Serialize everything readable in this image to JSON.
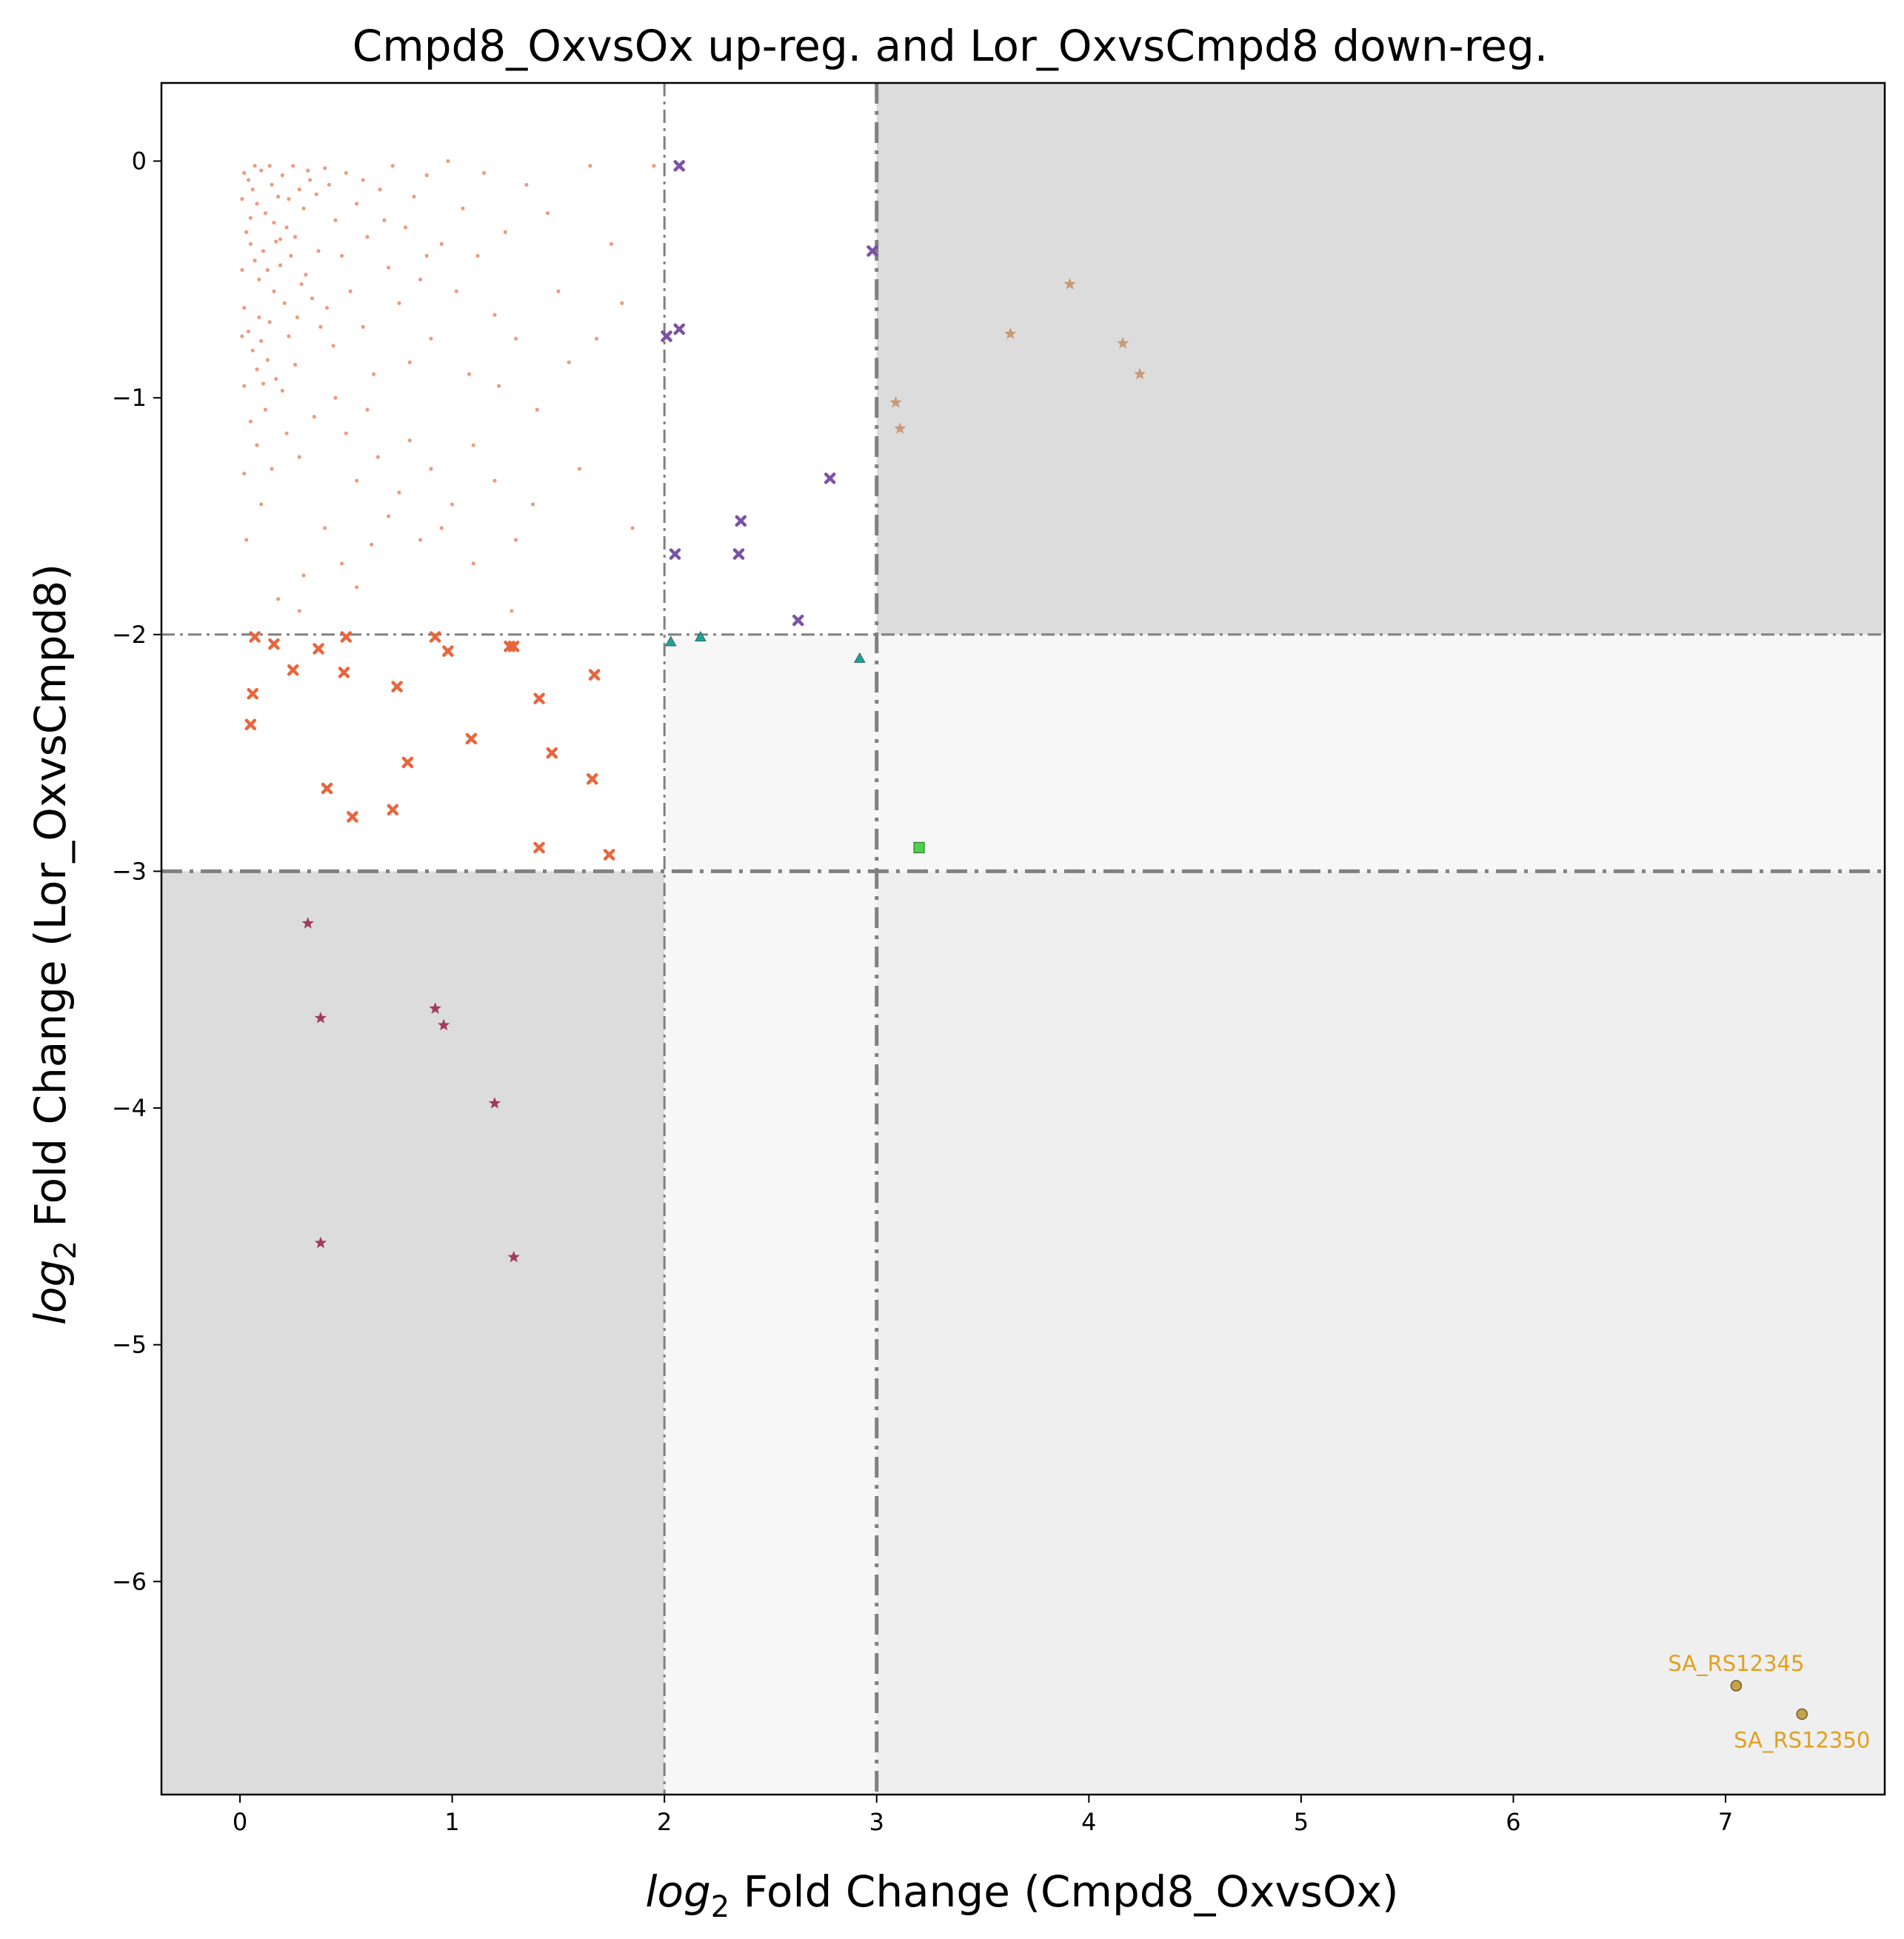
{
  "chart_data": {
    "type": "scatter",
    "title": "Cmpd8_OxvsOx up-reg. and Lor_OxvsCmpd8 down-reg.",
    "xlabel_prefix": "log",
    "xlabel_sub": "2",
    "xlabel_suffix": " Fold Change (Cmpd8_OxvsOx)",
    "ylabel_prefix": "log",
    "ylabel_sub": "2",
    "ylabel_suffix": " Fold Change (Lor_OxvsCmpd8)",
    "xlim": [
      -0.37,
      7.75
    ],
    "ylim": [
      -6.9,
      0.33
    ],
    "xticks": [
      0,
      1,
      2,
      3,
      4,
      5,
      6,
      7
    ],
    "yticks": [
      0,
      -1,
      -2,
      -3,
      -4,
      -5,
      -6
    ],
    "xtick_labels": [
      "0",
      "1",
      "2",
      "3",
      "4",
      "5",
      "6",
      "7"
    ],
    "ytick_labels": [
      "0",
      "−1",
      "−2",
      "−3",
      "−4",
      "−5",
      "−6"
    ],
    "grid": false,
    "regions": [
      {
        "x": [
          3,
          7.75
        ],
        "y": [
          -2,
          0.33
        ],
        "color": "#dcdcdc"
      },
      {
        "x": [
          -0.37,
          2
        ],
        "y": [
          -6.9,
          -3
        ],
        "color": "#dcdcdc"
      },
      {
        "x": [
          3,
          7.75
        ],
        "y": [
          -6.9,
          -3
        ],
        "color": "#efefef"
      },
      {
        "x": [
          2,
          3
        ],
        "y": [
          -6.9,
          -2
        ],
        "color": "#f7f7f7"
      },
      {
        "x": [
          3,
          7.75
        ],
        "y": [
          -3,
          -2
        ],
        "color": "#f7f7f7"
      }
    ],
    "threshold_lines": [
      {
        "axis": "x",
        "value": 2,
        "style": "thin"
      },
      {
        "axis": "x",
        "value": 3,
        "style": "thick"
      },
      {
        "axis": "y",
        "value": -2,
        "style": "thin"
      },
      {
        "axis": "y",
        "value": -3,
        "style": "thick"
      }
    ],
    "series": [
      {
        "marker": "dot",
        "color": "#e8825f",
        "points": [
          [
            0.02,
            -0.05
          ],
          [
            0.04,
            -0.08
          ],
          [
            0.06,
            -0.12
          ],
          [
            0.08,
            -0.18
          ],
          [
            0.1,
            -0.04
          ],
          [
            0.12,
            -0.22
          ],
          [
            0.15,
            -0.1
          ],
          [
            0.18,
            -0.15
          ],
          [
            0.2,
            -0.06
          ],
          [
            0.22,
            -0.28
          ],
          [
            0.25,
            -0.02
          ],
          [
            0.28,
            -0.12
          ],
          [
            0.3,
            -0.2
          ],
          [
            0.33,
            -0.08
          ],
          [
            0.36,
            -0.14
          ],
          [
            0.4,
            -0.03
          ],
          [
            0.03,
            -0.3
          ],
          [
            0.05,
            -0.35
          ],
          [
            0.07,
            -0.42
          ],
          [
            0.09,
            -0.5
          ],
          [
            0.11,
            -0.38
          ],
          [
            0.13,
            -0.46
          ],
          [
            0.16,
            -0.55
          ],
          [
            0.19,
            -0.33
          ],
          [
            0.21,
            -0.6
          ],
          [
            0.24,
            -0.4
          ],
          [
            0.27,
            -0.66
          ],
          [
            0.31,
            -0.48
          ],
          [
            0.34,
            -0.58
          ],
          [
            0.38,
            -0.7
          ],
          [
            0.02,
            -0.62
          ],
          [
            0.04,
            -0.72
          ],
          [
            0.06,
            -0.8
          ],
          [
            0.08,
            -0.88
          ],
          [
            0.1,
            -0.76
          ],
          [
            0.13,
            -0.84
          ],
          [
            0.17,
            -0.92
          ],
          [
            0.2,
            -0.97
          ],
          [
            0.23,
            -0.74
          ],
          [
            0.26,
            -0.86
          ],
          [
            0.02,
            -0.95
          ],
          [
            0.05,
            -1.1
          ],
          [
            0.08,
            -1.2
          ],
          [
            0.12,
            -1.05
          ],
          [
            0.15,
            -1.3
          ],
          [
            0.22,
            -1.15
          ],
          [
            0.28,
            -1.25
          ],
          [
            0.35,
            -1.08
          ],
          [
            0.03,
            -1.6
          ],
          [
            0.1,
            -1.45
          ],
          [
            0.42,
            -0.1
          ],
          [
            0.45,
            -0.25
          ],
          [
            0.48,
            -0.4
          ],
          [
            0.5,
            -0.05
          ],
          [
            0.52,
            -0.55
          ],
          [
            0.55,
            -0.18
          ],
          [
            0.58,
            -0.7
          ],
          [
            0.6,
            -0.32
          ],
          [
            0.63,
            -0.9
          ],
          [
            0.66,
            -0.12
          ],
          [
            0.7,
            -0.45
          ],
          [
            0.72,
            -0.02
          ],
          [
            0.75,
            -0.6
          ],
          [
            0.78,
            -0.28
          ],
          [
            0.8,
            -0.85
          ],
          [
            0.82,
            -0.15
          ],
          [
            0.85,
            -0.5
          ],
          [
            0.88,
            -0.06
          ],
          [
            0.9,
            -0.75
          ],
          [
            0.95,
            -0.35
          ],
          [
            0.98,
            -0.0
          ],
          [
            1.02,
            -0.55
          ],
          [
            1.05,
            -0.2
          ],
          [
            1.08,
            -0.9
          ],
          [
            1.12,
            -0.4
          ],
          [
            1.15,
            -0.05
          ],
          [
            1.2,
            -0.65
          ],
          [
            1.25,
            -0.3
          ],
          [
            1.3,
            -0.75
          ],
          [
            1.35,
            -0.1
          ],
          [
            0.45,
            -1.0
          ],
          [
            0.5,
            -1.15
          ],
          [
            0.55,
            -1.35
          ],
          [
            0.6,
            -1.05
          ],
          [
            0.65,
            -1.25
          ],
          [
            0.7,
            -1.5
          ],
          [
            0.75,
            -1.4
          ],
          [
            0.8,
            -1.18
          ],
          [
            0.85,
            -1.6
          ],
          [
            0.9,
            -1.3
          ],
          [
            0.4,
            -1.55
          ],
          [
            0.48,
            -1.7
          ],
          [
            0.55,
            -1.8
          ],
          [
            0.62,
            -1.62
          ],
          [
            0.3,
            -1.75
          ],
          [
            0.18,
            -1.85
          ],
          [
            0.28,
            -1.9
          ],
          [
            0.95,
            -1.55
          ],
          [
            1.0,
            -1.45
          ],
          [
            1.1,
            -1.7
          ],
          [
            1.2,
            -1.35
          ],
          [
            1.3,
            -1.6
          ],
          [
            1.4,
            -1.05
          ],
          [
            1.45,
            -0.22
          ],
          [
            1.5,
            -0.55
          ],
          [
            1.55,
            -0.85
          ],
          [
            1.6,
            -1.3
          ],
          [
            1.65,
            -0.02
          ],
          [
            1.68,
            -0.75
          ],
          [
            1.75,
            -0.35
          ],
          [
            1.8,
            -0.6
          ],
          [
            1.85,
            -1.55
          ],
          [
            1.95,
            -0.02
          ],
          [
            1.38,
            -1.45
          ],
          [
            1.28,
            -1.9
          ],
          [
            1.1,
            -1.2
          ],
          [
            1.22,
            -0.95
          ],
          [
            0.58,
            -0.08
          ],
          [
            0.68,
            -0.25
          ],
          [
            0.88,
            -0.4
          ],
          [
            0.14,
            -0.02
          ],
          [
            0.16,
            -0.26
          ],
          [
            0.19,
            -0.44
          ],
          [
            0.23,
            -0.16
          ],
          [
            0.26,
            -0.32
          ],
          [
            0.29,
            -0.52
          ],
          [
            0.32,
            -0.04
          ],
          [
            0.37,
            -0.38
          ],
          [
            0.41,
            -0.62
          ],
          [
            0.44,
            -0.78
          ],
          [
            0.01,
            -0.16
          ],
          [
            0.01,
            -0.46
          ],
          [
            0.01,
            -0.74
          ],
          [
            0.02,
            -1.32
          ],
          [
            0.05,
            -0.24
          ],
          [
            0.07,
            -0.02
          ],
          [
            0.09,
            -0.66
          ],
          [
            0.11,
            -0.94
          ],
          [
            0.14,
            -0.68
          ],
          [
            0.17,
            -0.34
          ]
        ]
      },
      {
        "marker": "x",
        "color": "#e8663d",
        "points": [
          [
            0.07,
            -2.01
          ],
          [
            0.16,
            -2.04
          ],
          [
            0.37,
            -2.06
          ],
          [
            0.5,
            -2.01
          ],
          [
            0.92,
            -2.01
          ],
          [
            0.98,
            -2.07
          ],
          [
            1.27,
            -2.05
          ],
          [
            1.29,
            -2.05
          ],
          [
            0.06,
            -2.25
          ],
          [
            0.25,
            -2.15
          ],
          [
            0.49,
            -2.16
          ],
          [
            0.74,
            -2.22
          ],
          [
            1.41,
            -2.27
          ],
          [
            1.67,
            -2.17
          ],
          [
            0.05,
            -2.38
          ],
          [
            1.09,
            -2.44
          ],
          [
            1.47,
            -2.5
          ],
          [
            0.79,
            -2.54
          ],
          [
            0.41,
            -2.65
          ],
          [
            1.66,
            -2.61
          ],
          [
            0.53,
            -2.77
          ],
          [
            0.72,
            -2.74
          ],
          [
            1.41,
            -2.9
          ],
          [
            1.74,
            -2.93
          ]
        ]
      },
      {
        "marker": "x",
        "color": "#7b52a6",
        "points": [
          [
            2.07,
            -0.02
          ],
          [
            2.98,
            -0.38
          ],
          [
            2.01,
            -0.74
          ],
          [
            2.07,
            -0.71
          ],
          [
            2.78,
            -1.34
          ],
          [
            2.36,
            -1.52
          ],
          [
            2.35,
            -1.66
          ],
          [
            2.05,
            -1.66
          ],
          [
            2.63,
            -1.94
          ]
        ]
      },
      {
        "marker": "triangle",
        "color": "#23a09a",
        "points": [
          [
            2.03,
            -2.03
          ],
          [
            2.17,
            -2.01
          ],
          [
            2.92,
            -2.1
          ]
        ]
      },
      {
        "marker": "square",
        "color": "#4bd14b",
        "points": [
          [
            3.2,
            -2.9
          ]
        ]
      },
      {
        "marker": "star",
        "color": "#c89a78",
        "points": [
          [
            3.91,
            -0.52
          ],
          [
            3.63,
            -0.73
          ],
          [
            4.16,
            -0.77
          ],
          [
            4.24,
            -0.9
          ],
          [
            3.09,
            -1.02
          ],
          [
            3.11,
            -1.13
          ]
        ]
      },
      {
        "marker": "star",
        "color": "#a33a5c",
        "points": [
          [
            0.32,
            -3.22
          ],
          [
            0.38,
            -3.62
          ],
          [
            0.92,
            -3.58
          ],
          [
            0.96,
            -3.65
          ],
          [
            1.2,
            -3.98
          ],
          [
            0.38,
            -4.57
          ],
          [
            1.29,
            -4.63
          ]
        ]
      },
      {
        "marker": "circle",
        "color": "#c9a24a",
        "points": [
          [
            7.05,
            -6.44
          ],
          [
            7.36,
            -6.56
          ]
        ]
      }
    ],
    "annotations": [
      {
        "text": "SA_RS12345",
        "x": 7.05,
        "y": -6.44,
        "color": "#e0a020",
        "offset": "above"
      },
      {
        "text": "SA_RS12350",
        "x": 7.36,
        "y": -6.56,
        "color": "#e0a020",
        "offset": "below"
      }
    ]
  }
}
